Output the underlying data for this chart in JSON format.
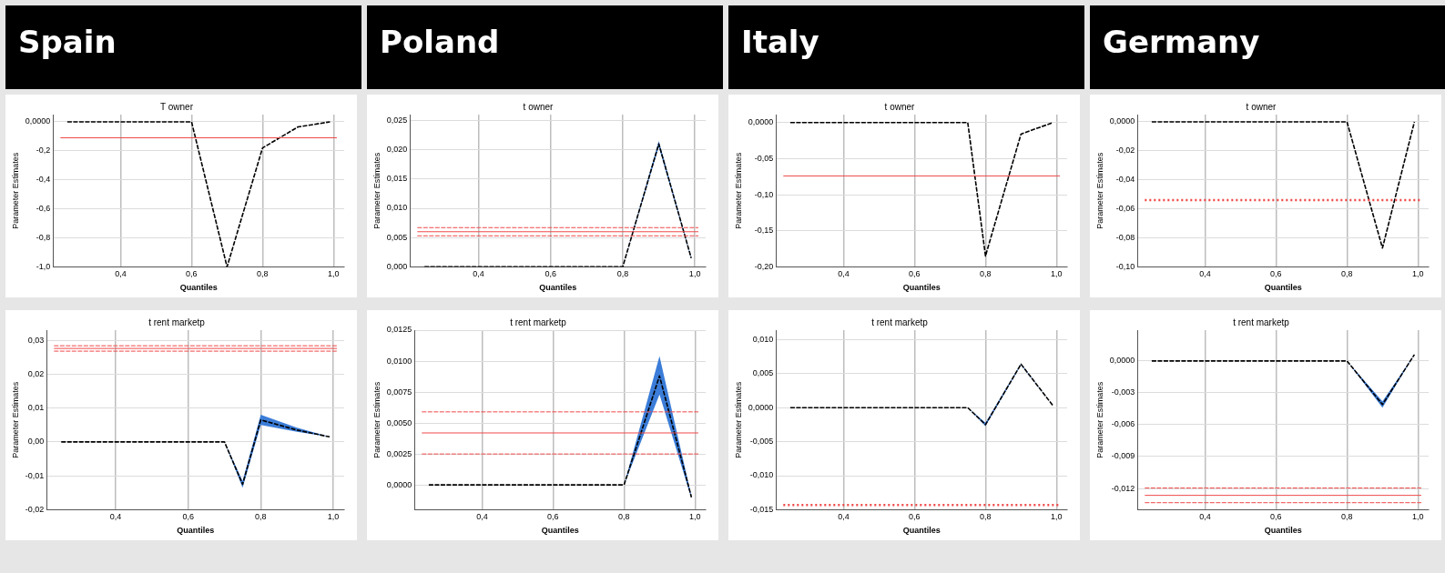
{
  "chart_data": [
    {
      "type": "line",
      "subtitle": "Spain",
      "title": "T owner",
      "xlabel": "Quantiles",
      "ylabel": "Parameter Estimates",
      "grid": true,
      "marker": "none",
      "line_style": "dashed",
      "xlim": [
        0.21,
        1.03
      ],
      "xticks": [
        {
          "value": 0.4,
          "label": "0,4"
        },
        {
          "value": 0.6,
          "label": "0,6"
        },
        {
          "value": 0.8,
          "label": "0,8"
        },
        {
          "value": 1.0,
          "label": "1,0"
        }
      ],
      "ylim": [
        -1.0,
        0.05
      ],
      "yticks": [
        {
          "value": 0,
          "label": "0,0000"
        },
        {
          "value": -0.2,
          "label": "-0,2"
        },
        {
          "value": -0.4,
          "label": "-0,4"
        },
        {
          "value": -0.6,
          "label": "-0,6"
        },
        {
          "value": -0.8,
          "label": "-0,8"
        },
        {
          "value": -1.0,
          "label": "-1,0"
        }
      ],
      "series": [
        {
          "color": "#000000",
          "x": [
            0.25,
            0.6,
            0.7,
            0.8,
            0.9,
            0.99
          ],
          "values": [
            0,
            0,
            -1.0,
            -0.18,
            -0.035,
            0
          ]
        }
      ],
      "ref_lines": [
        {
          "axis": "y",
          "value": -0.11,
          "color": "#f04848",
          "line_style": "solid"
        }
      ]
    },
    {
      "type": "line",
      "subtitle": "Poland",
      "title": "t owner",
      "xlabel": "Quantiles",
      "ylabel": "Parameter Estimates",
      "grid": true,
      "marker": "none",
      "line_style": "dashed",
      "xlim": [
        0.21,
        1.03
      ],
      "xticks": [
        {
          "value": 0.4,
          "label": "0,4"
        },
        {
          "value": 0.6,
          "label": "0,6"
        },
        {
          "value": 0.8,
          "label": "0,8"
        },
        {
          "value": 1.0,
          "label": "1,0"
        }
      ],
      "ylim": [
        0,
        0.026
      ],
      "yticks": [
        {
          "value": 0,
          "label": "0,000"
        },
        {
          "value": 0.005,
          "label": "0,005"
        },
        {
          "value": 0.01,
          "label": "0,010"
        },
        {
          "value": 0.015,
          "label": "0,015"
        },
        {
          "value": 0.02,
          "label": "0,020"
        },
        {
          "value": 0.025,
          "label": "0,025"
        }
      ],
      "series": [
        {
          "color": "#000000",
          "x": [
            0.25,
            0.8,
            0.9,
            0.99
          ],
          "values": [
            0,
            0,
            0.021,
            0.0015
          ],
          "lower": [
            0,
            0,
            0.0205,
            0.0014
          ],
          "upper": [
            0,
            0,
            0.0215,
            0.0016
          ]
        }
      ],
      "ref_lines": [
        {
          "axis": "y",
          "value": 0.006,
          "color": "#f04848",
          "line_style": "solid"
        },
        {
          "axis": "y",
          "value": 0.0067,
          "color": "#f04848",
          "line_style": "dashed"
        },
        {
          "axis": "y",
          "value": 0.0053,
          "color": "#f04848",
          "line_style": "dashed"
        }
      ]
    },
    {
      "type": "line",
      "subtitle": "Italy",
      "title": "t owner",
      "xlabel": "Quantiles",
      "ylabel": "Parameter Estimates",
      "grid": true,
      "marker": "none",
      "line_style": "dashed",
      "xlim": [
        0.21,
        1.03
      ],
      "xticks": [
        {
          "value": 0.4,
          "label": "0,4"
        },
        {
          "value": 0.6,
          "label": "0,6"
        },
        {
          "value": 0.8,
          "label": "0,8"
        },
        {
          "value": 1.0,
          "label": "1,0"
        }
      ],
      "ylim": [
        -0.2,
        0.011
      ],
      "yticks": [
        {
          "value": 0,
          "label": "0,0000"
        },
        {
          "value": -0.05,
          "label": "-0,05"
        },
        {
          "value": -0.1,
          "label": "-0,10"
        },
        {
          "value": -0.15,
          "label": "-0,15"
        },
        {
          "value": -0.2,
          "label": "-0,20"
        }
      ],
      "series": [
        {
          "color": "#000000",
          "x": [
            0.25,
            0.75,
            0.8,
            0.9,
            0.99
          ],
          "values": [
            0,
            0,
            -0.185,
            -0.016,
            0
          ]
        }
      ],
      "ref_lines": [
        {
          "axis": "y",
          "value": -0.074,
          "color": "#f04848",
          "line_style": "solid"
        }
      ]
    },
    {
      "type": "line",
      "subtitle": "Germany",
      "title": "t owner",
      "xlabel": "Quantiles",
      "ylabel": "Parameter Estimates",
      "grid": true,
      "marker": "none",
      "line_style": "dashed",
      "xlim": [
        0.21,
        1.03
      ],
      "xticks": [
        {
          "value": 0.4,
          "label": "0,4"
        },
        {
          "value": 0.6,
          "label": "0,6"
        },
        {
          "value": 0.8,
          "label": "0,8"
        },
        {
          "value": 1.0,
          "label": "1,0"
        }
      ],
      "ylim": [
        -0.1,
        0.005
      ],
      "yticks": [
        {
          "value": 0,
          "label": "0,0000"
        },
        {
          "value": -0.02,
          "label": "-0,02"
        },
        {
          "value": -0.04,
          "label": "-0,04"
        },
        {
          "value": -0.06,
          "label": "-0,06"
        },
        {
          "value": -0.08,
          "label": "-0,08"
        },
        {
          "value": -0.1,
          "label": "-0,10"
        }
      ],
      "series": [
        {
          "color": "#000000",
          "x": [
            0.25,
            0.8,
            0.9,
            0.99
          ],
          "values": [
            0,
            0,
            -0.087,
            0
          ]
        }
      ],
      "ref_lines": [
        {
          "axis": "y",
          "value": -0.054,
          "color": "#f04848",
          "line_style": "dotted"
        }
      ]
    },
    {
      "type": "line",
      "title": "t rent marketp",
      "xlabel": "Quantiles",
      "ylabel": "Parameter Estimates",
      "grid": true,
      "marker": "none",
      "line_style": "dashed",
      "xlim": [
        0.21,
        1.03
      ],
      "xticks": [
        {
          "value": 0.4,
          "label": "0,4"
        },
        {
          "value": 0.6,
          "label": "0,6"
        },
        {
          "value": 0.8,
          "label": "0,8"
        },
        {
          "value": 1.0,
          "label": "1,0"
        }
      ],
      "ylim": [
        -0.02,
        0.033
      ],
      "yticks": [
        {
          "value": 0.03,
          "label": "0,03"
        },
        {
          "value": 0.02,
          "label": "0,02"
        },
        {
          "value": 0.01,
          "label": "0,01"
        },
        {
          "value": 0,
          "label": "0,00"
        },
        {
          "value": -0.01,
          "label": "-0,01"
        },
        {
          "value": -0.02,
          "label": "-0,02"
        }
      ],
      "series": [
        {
          "color": "#000000",
          "x": [
            0.25,
            0.7,
            0.75,
            0.8,
            0.9,
            0.99
          ],
          "values": [
            0,
            0,
            -0.0125,
            0.0065,
            0.0035,
            0.0015
          ],
          "lower": [
            0,
            0,
            -0.0135,
            0.005,
            0.003,
            0.0015
          ],
          "upper": [
            0,
            0,
            -0.0115,
            0.008,
            0.0042,
            0.0015
          ]
        }
      ],
      "ref_lines": [
        {
          "axis": "y",
          "value": 0.0276,
          "color": "#f04848",
          "line_style": "solid"
        },
        {
          "axis": "y",
          "value": 0.0284,
          "color": "#f04848",
          "line_style": "dashed"
        },
        {
          "axis": "y",
          "value": 0.0268,
          "color": "#f04848",
          "line_style": "dashed"
        }
      ]
    },
    {
      "type": "line",
      "title": "t rent marketp",
      "xlabel": "Quantiles",
      "ylabel": "Parameter Estimates",
      "grid": true,
      "marker": "none",
      "line_style": "dashed",
      "xlim": [
        0.21,
        1.03
      ],
      "xticks": [
        {
          "value": 0.4,
          "label": "0,4"
        },
        {
          "value": 0.6,
          "label": "0,6"
        },
        {
          "value": 0.8,
          "label": "0,8"
        },
        {
          "value": 1.0,
          "label": "1,0"
        }
      ],
      "ylim": [
        -0.002,
        0.0125
      ],
      "yticks": [
        {
          "value": 0,
          "label": "0,0000"
        },
        {
          "value": 0.0025,
          "label": "0,0025"
        },
        {
          "value": 0.005,
          "label": "0,0050"
        },
        {
          "value": 0.0075,
          "label": "0,0075"
        },
        {
          "value": 0.01,
          "label": "0,0100"
        },
        {
          "value": 0.0125,
          "label": "0,0125"
        }
      ],
      "series": [
        {
          "color": "#000000",
          "x": [
            0.25,
            0.8,
            0.9,
            0.99
          ],
          "values": [
            0,
            0,
            0.0088,
            -0.001
          ],
          "lower": [
            0,
            0,
            0.0073,
            -0.0011
          ],
          "upper": [
            0,
            0,
            0.0104,
            -0.0009
          ]
        }
      ],
      "ref_lines": [
        {
          "axis": "y",
          "value": 0.0042,
          "color": "#f04848",
          "line_style": "solid"
        },
        {
          "axis": "y",
          "value": 0.0059,
          "color": "#f04848",
          "line_style": "dashed"
        },
        {
          "axis": "y",
          "value": 0.0025,
          "color": "#f04848",
          "line_style": "dashed"
        }
      ]
    },
    {
      "type": "line",
      "title": "t rent marketp",
      "xlabel": "Quantiles",
      "ylabel": "Parameter Estimates",
      "grid": true,
      "marker": "none",
      "line_style": "dashed",
      "xlim": [
        0.21,
        1.03
      ],
      "xticks": [
        {
          "value": 0.4,
          "label": "0,4"
        },
        {
          "value": 0.6,
          "label": "0,6"
        },
        {
          "value": 0.8,
          "label": "0,8"
        },
        {
          "value": 1.0,
          "label": "1,0"
        }
      ],
      "ylim": [
        -0.015,
        0.0114
      ],
      "yticks": [
        {
          "value": 0.01,
          "label": "0,010"
        },
        {
          "value": 0.005,
          "label": "0,005"
        },
        {
          "value": 0,
          "label": "0,0000"
        },
        {
          "value": -0.005,
          "label": "-0,005"
        },
        {
          "value": -0.01,
          "label": "-0,010"
        },
        {
          "value": -0.015,
          "label": "-0,015"
        }
      ],
      "series": [
        {
          "color": "#000000",
          "x": [
            0.25,
            0.75,
            0.8,
            0.9,
            0.99
          ],
          "values": [
            0,
            0,
            -0.0025,
            0.0064,
            0.0003
          ],
          "lower": [
            0,
            0,
            -0.0027,
            0.0063,
            0.0003
          ],
          "upper": [
            0,
            0,
            -0.0022,
            0.0065,
            0.0003
          ]
        }
      ],
      "ref_lines": [
        {
          "axis": "y",
          "value": -0.0143,
          "color": "#f04848",
          "line_style": "dotted"
        }
      ]
    },
    {
      "type": "line",
      "title": "t rent marketp",
      "xlabel": "Quantiles",
      "ylabel": "Parameter Estimates",
      "grid": true,
      "marker": "none",
      "line_style": "dashed",
      "xlim": [
        0.21,
        1.03
      ],
      "xticks": [
        {
          "value": 0.4,
          "label": "0,4"
        },
        {
          "value": 0.6,
          "label": "0,6"
        },
        {
          "value": 0.8,
          "label": "0,8"
        },
        {
          "value": 1.0,
          "label": "1,0"
        }
      ],
      "ylim": [
        -0.014,
        0.0029
      ],
      "yticks": [
        {
          "value": 0,
          "label": "0,0000"
        },
        {
          "value": -0.003,
          "label": "-0,003"
        },
        {
          "value": -0.006,
          "label": "-0,006"
        },
        {
          "value": -0.009,
          "label": "-0,009"
        },
        {
          "value": -0.012,
          "label": "-0,012"
        }
      ],
      "series": [
        {
          "color": "#000000",
          "x": [
            0.25,
            0.8,
            0.9,
            0.99
          ],
          "values": [
            0,
            0,
            -0.0041,
            0.0006
          ],
          "lower": [
            0,
            0,
            -0.0044,
            0.0006
          ],
          "upper": [
            0,
            0,
            -0.0038,
            0.0006
          ]
        }
      ],
      "ref_lines": [
        {
          "axis": "y",
          "value": -0.01265,
          "color": "#f04848",
          "line_style": "solid"
        },
        {
          "axis": "y",
          "value": -0.01196,
          "color": "#f04848",
          "line_style": "dashed"
        },
        {
          "axis": "y",
          "value": -0.01334,
          "color": "#f04848",
          "line_style": "dashed"
        }
      ]
    }
  ]
}
